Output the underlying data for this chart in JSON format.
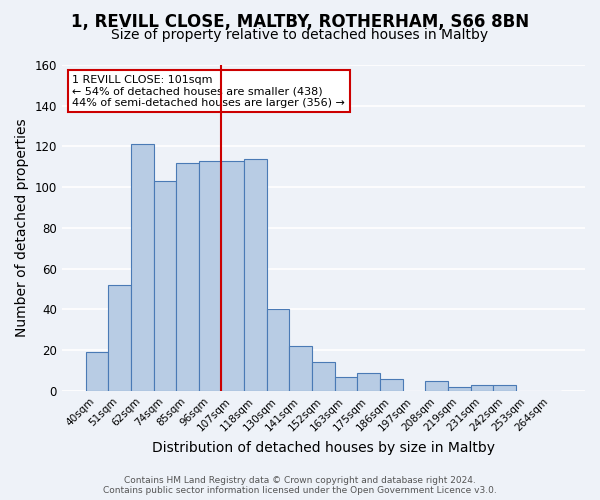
{
  "title": "1, REVILL CLOSE, MALTBY, ROTHERHAM, S66 8BN",
  "subtitle": "Size of property relative to detached houses in Maltby",
  "xlabel": "Distribution of detached houses by size in Maltby",
  "ylabel": "Number of detached properties",
  "categories": [
    "40sqm",
    "51sqm",
    "62sqm",
    "74sqm",
    "85sqm",
    "96sqm",
    "107sqm",
    "118sqm",
    "130sqm",
    "141sqm",
    "152sqm",
    "163sqm",
    "175sqm",
    "186sqm",
    "197sqm",
    "208sqm",
    "219sqm",
    "231sqm",
    "242sqm",
    "253sqm",
    "264sqm"
  ],
  "values": [
    19,
    52,
    121,
    103,
    112,
    113,
    113,
    114,
    40,
    22,
    14,
    7,
    9,
    6,
    0,
    5,
    2,
    3,
    3,
    0,
    0
  ],
  "bar_color": "#b8cce4",
  "bar_edge_color": "#4a7ab5",
  "ylim": [
    0,
    160
  ],
  "yticks": [
    0,
    20,
    40,
    60,
    80,
    100,
    120,
    140,
    160
  ],
  "vline_color": "#cc0000",
  "annotation_title": "1 REVILL CLOSE: 101sqm",
  "annotation_line1": "← 54% of detached houses are smaller (438)",
  "annotation_line2": "44% of semi-detached houses are larger (356) →",
  "annotation_box_color": "#ffffff",
  "annotation_box_edge": "#cc0000",
  "footer1": "Contains HM Land Registry data © Crown copyright and database right 2024.",
  "footer2": "Contains public sector information licensed under the Open Government Licence v3.0.",
  "background_color": "#eef2f8",
  "grid_color": "#ffffff",
  "title_fontsize": 12,
  "subtitle_fontsize": 10,
  "axis_label_fontsize": 10
}
